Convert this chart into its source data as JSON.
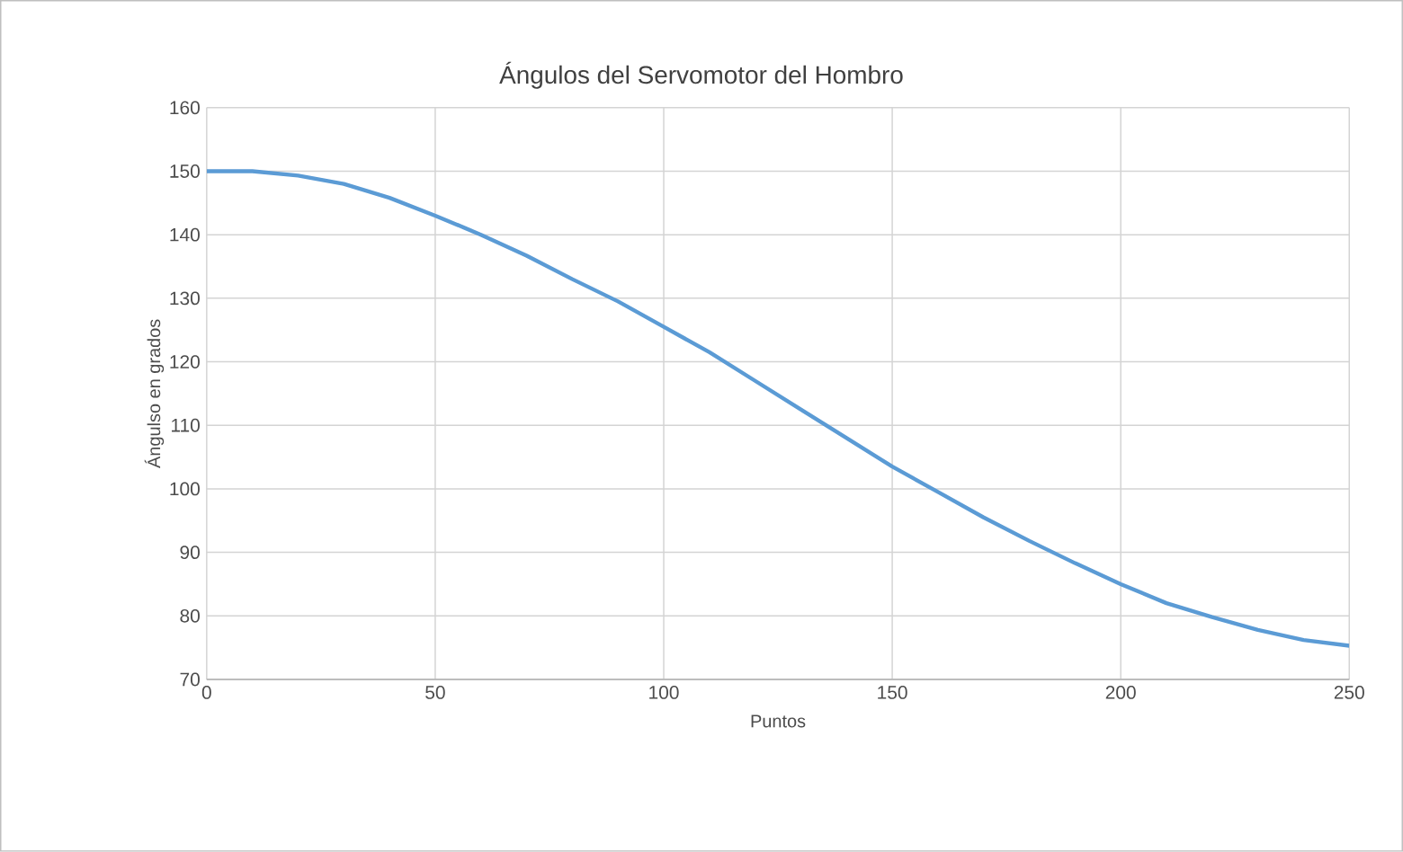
{
  "chart_data": {
    "type": "line",
    "title": "Ángulos del Servomotor del Hombro",
    "xlabel": "Puntos",
    "ylabel": "Ángulso en grados",
    "x": [
      0,
      10,
      20,
      30,
      40,
      50,
      60,
      70,
      80,
      90,
      100,
      110,
      120,
      130,
      140,
      150,
      160,
      170,
      180,
      190,
      200,
      210,
      220,
      230,
      240,
      250
    ],
    "series": [
      {
        "color": "#5b9bd5",
        "values": [
          150,
          150,
          149.3,
          148,
          145.8,
          143,
          140,
          136.7,
          133,
          129.5,
          125.5,
          121.5,
          117,
          112.5,
          108,
          103.5,
          99.5,
          95.5,
          91.8,
          88.3,
          85,
          82,
          79.8,
          77.8,
          76.2,
          75.3
        ]
      }
    ],
    "xlim": [
      0,
      250
    ],
    "xticks": [
      0,
      50,
      100,
      150,
      200,
      250
    ],
    "ylim": [
      70,
      160
    ],
    "yticks": [
      70,
      80,
      90,
      100,
      110,
      120,
      130,
      140,
      150,
      160
    ],
    "grid": true,
    "marker": "none",
    "line_style": "solid"
  }
}
